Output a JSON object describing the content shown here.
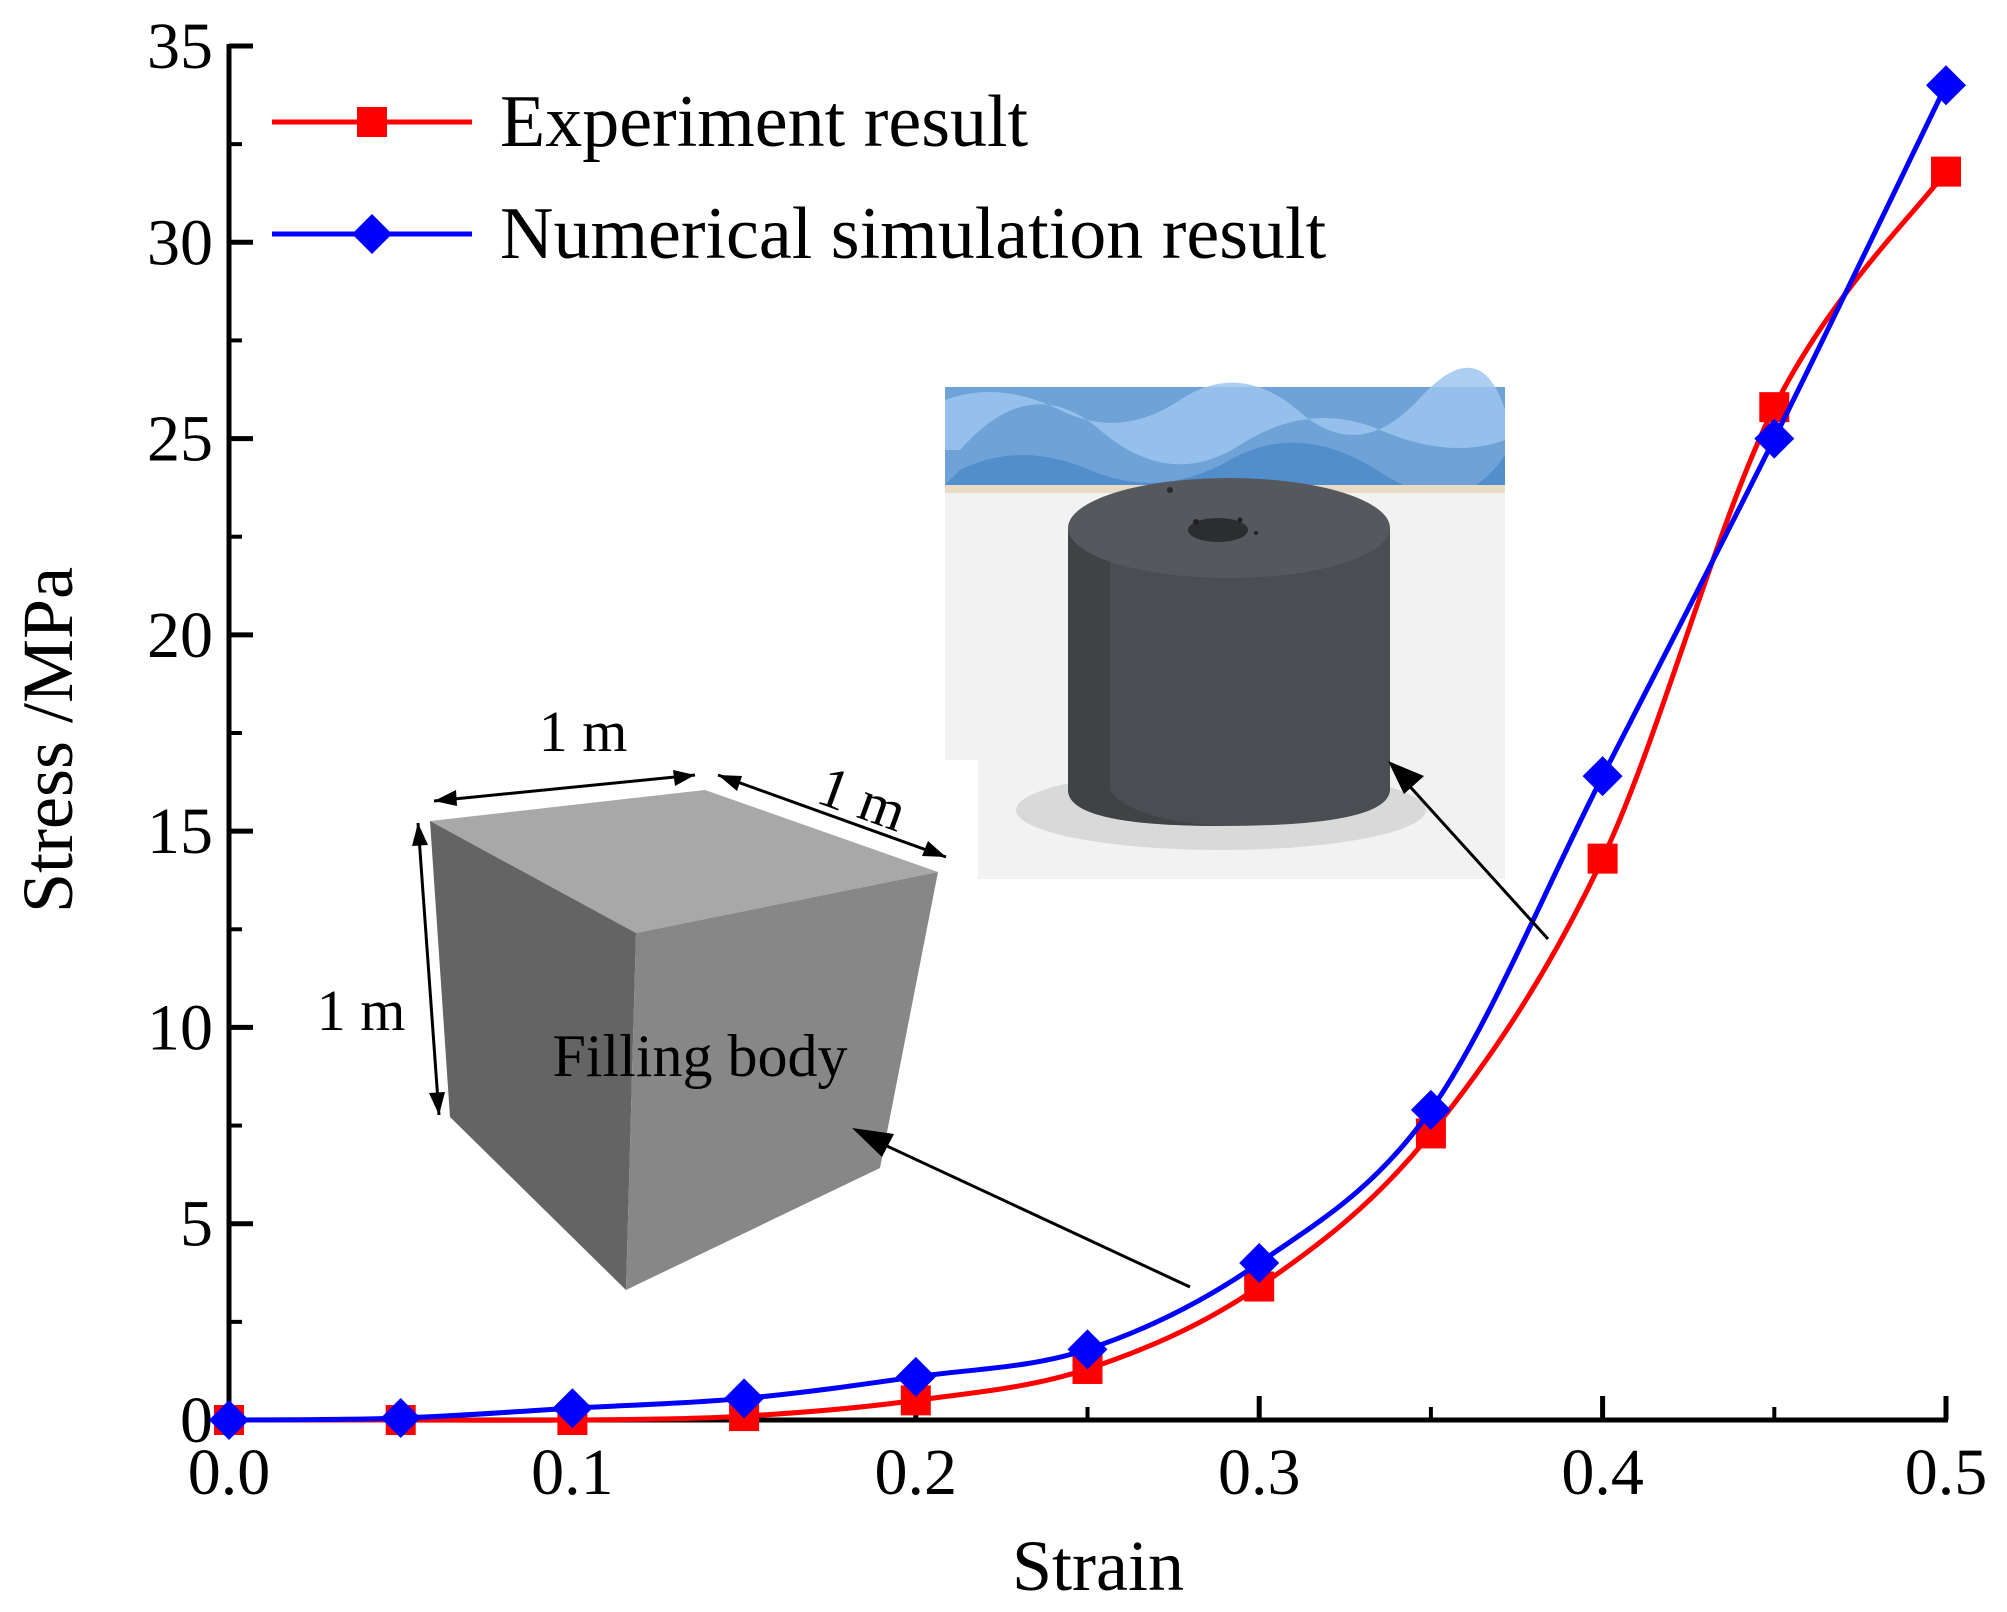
{
  "chart_data": {
    "type": "line",
    "title": "",
    "xlabel": "Strain",
    "ylabel": "Stress /MPa",
    "xlim": [
      0,
      0.5
    ],
    "ylim": [
      0,
      35
    ],
    "x_ticks": [
      0.0,
      0.1,
      0.2,
      0.3,
      0.4,
      0.5
    ],
    "x_tick_labels": [
      "0.0",
      "0.1",
      "0.2",
      "0.3",
      "0.4",
      "0.5"
    ],
    "y_ticks": [
      0,
      5,
      10,
      15,
      20,
      25,
      30,
      35
    ],
    "y_tick_labels": [
      "0",
      "5",
      "10",
      "15",
      "20",
      "25",
      "30",
      "35"
    ],
    "grid": false,
    "legend_position": "top-left",
    "x": [
      0.0,
      0.05,
      0.1,
      0.15,
      0.2,
      0.25,
      0.3,
      0.35,
      0.4,
      0.45,
      0.5
    ],
    "series": [
      {
        "name": "Experiment result",
        "color": "#ff0000",
        "marker": "square",
        "values": [
          0.0,
          0.0,
          0.0,
          0.1,
          0.5,
          1.3,
          3.4,
          7.3,
          14.3,
          25.8,
          31.8
        ]
      },
      {
        "name": "Numerical simulation result",
        "color": "#0000ff",
        "marker": "diamond",
        "values": [
          0.0,
          0.05,
          0.3,
          0.55,
          1.1,
          1.8,
          4.0,
          7.9,
          16.4,
          25.0,
          34.0
        ]
      }
    ],
    "annotations": {
      "cube_edge_top": "1 m",
      "cube_edge_right": "1 m",
      "cube_edge_left": "1 m",
      "cube_label": "Filling body"
    }
  }
}
